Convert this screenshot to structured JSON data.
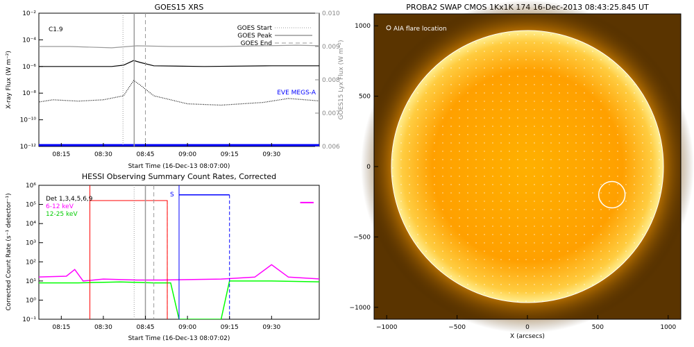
{
  "chart_data": [
    {
      "type": "line",
      "title": "GOES15 XRS",
      "class_label": "C1.9",
      "xlabel": "Start Time (16-Dec-13 08:07:00)",
      "ylabel": "X-ray Flux (W m⁻²)",
      "y2label": "GOES15 Lyx Flux (W m⁻²)",
      "x_ticks": [
        "08:15",
        "08:30",
        "08:45",
        "09:00",
        "09:15",
        "09:30"
      ],
      "y_ticks": [
        "10⁻²",
        "10⁻⁴",
        "10⁻⁶",
        "10⁻⁸",
        "10⁻¹⁰",
        "10⁻¹²"
      ],
      "y2_ticks": [
        "0.010",
        "0.009",
        "0.008",
        "0.007",
        "0.006"
      ],
      "legend": [
        {
          "name": "GOES Start",
          "style": "dotted",
          "color": "#999999"
        },
        {
          "name": "GOES Peak",
          "style": "solid",
          "color": "#999999"
        },
        {
          "name": "GOES End",
          "style": "dashed",
          "color": "#999999"
        }
      ],
      "annotation": "EVE MEGS-A",
      "annotation_color": "#0000ff",
      "events": {
        "start": "08:37",
        "peak": "08:41",
        "end": "08:45"
      },
      "series": [
        {
          "color": "#999999",
          "values": [
            [
              8.1,
              -4.5
            ],
            [
              8.3,
              -4.5
            ],
            [
              8.55,
              -4.6
            ],
            [
              8.7,
              -4.45
            ],
            [
              8.9,
              -4.5
            ],
            [
              9.2,
              -4.5
            ],
            [
              9.45,
              -4.45
            ],
            [
              9.65,
              -4.4
            ],
            [
              9.8,
              -4.45
            ]
          ]
        },
        {
          "color": "#000000",
          "values": [
            [
              8.1,
              -6.0
            ],
            [
              8.55,
              -6.0
            ],
            [
              8.62,
              -5.9
            ],
            [
              8.68,
              -5.55
            ],
            [
              8.72,
              -5.7
            ],
            [
              8.8,
              -5.95
            ],
            [
              9.1,
              -6.0
            ],
            [
              9.5,
              -5.95
            ],
            [
              9.8,
              -5.95
            ]
          ]
        },
        {
          "color": "#000000",
          "values": [
            [
              8.1,
              -8.7
            ],
            [
              8.2,
              -8.5
            ],
            [
              8.35,
              -8.6
            ],
            [
              8.5,
              -8.5
            ],
            [
              8.62,
              -8.2
            ],
            [
              8.68,
              -7.05
            ],
            [
              8.72,
              -7.4
            ],
            [
              8.8,
              -8.2
            ],
            [
              9.0,
              -8.8
            ],
            [
              9.2,
              -8.9
            ],
            [
              9.45,
              -8.7
            ],
            [
              9.6,
              -8.4
            ],
            [
              9.8,
              -8.6
            ]
          ]
        },
        {
          "color": "#0000ff",
          "values": [
            [
              8.1,
              -11.9
            ],
            [
              9.8,
              -11.9
            ]
          ]
        }
      ]
    },
    {
      "type": "line",
      "title": "HESSI Observing Summary Count Rates, Corrected",
      "xlabel": "Start Time (16-Dec-13 08:07:02)",
      "ylabel": "Corrected Count Rate (s⁻¹ detector⁻¹)",
      "x_ticks": [
        "08:15",
        "08:30",
        "08:45",
        "09:00",
        "09:15",
        "09:30"
      ],
      "y_ticks": [
        "10⁶",
        "10⁵",
        "10⁴",
        "10³",
        "10²",
        "10¹",
        "10⁰",
        "10⁻¹"
      ],
      "legend": [
        {
          "name": "Det 1,3,4,5,6,9",
          "color": "#000000"
        },
        {
          "name": "6-12 keV",
          "color": "#ff00ff"
        },
        {
          "name": "12-25 keV",
          "color": "#00ff00"
        }
      ],
      "annotation": "S",
      "annotation_color": "#0000ff",
      "series": [
        {
          "name": "6-12 keV",
          "color": "#ff00ff",
          "values": [
            [
              8.1,
              1.2
            ],
            [
              8.28,
              1.25
            ],
            [
              8.33,
              1.6
            ],
            [
              8.38,
              1.0
            ],
            [
              8.5,
              1.1
            ],
            [
              8.7,
              1.05
            ],
            [
              8.85,
              1.05
            ],
            [
              9.15,
              null
            ],
            [
              9.2,
              1.1
            ],
            [
              9.4,
              1.2
            ],
            [
              9.5,
              1.85
            ],
            [
              9.6,
              1.2
            ],
            [
              9.8,
              1.1
            ]
          ]
        },
        {
          "name": "12-25 keV",
          "color": "#00ff00",
          "values": [
            [
              8.1,
              0.9
            ],
            [
              8.35,
              0.9
            ],
            [
              8.6,
              0.95
            ],
            [
              8.8,
              0.9
            ],
            [
              8.9,
              0.9
            ],
            [
              8.95,
              -1.0
            ],
            [
              9.2,
              -1.0
            ],
            [
              9.25,
              1.0
            ],
            [
              9.5,
              1.0
            ],
            [
              9.8,
              0.95
            ]
          ]
        }
      ]
    },
    {
      "type": "heatmap",
      "title": "PROBA2 SWAP CMOS 1Kx1K 174 16-Dec-2013 08:43:25.845 UT",
      "legend_label": "AIA flare location",
      "xlabel": "X (arcsecs)",
      "x_ticks": [
        "−1000",
        "−500",
        "0",
        "500",
        "1000"
      ],
      "y_ticks": [
        "1000",
        "500",
        "0",
        "−500",
        "−1000"
      ],
      "flare_location": {
        "x": 600,
        "y": -200
      }
    }
  ]
}
